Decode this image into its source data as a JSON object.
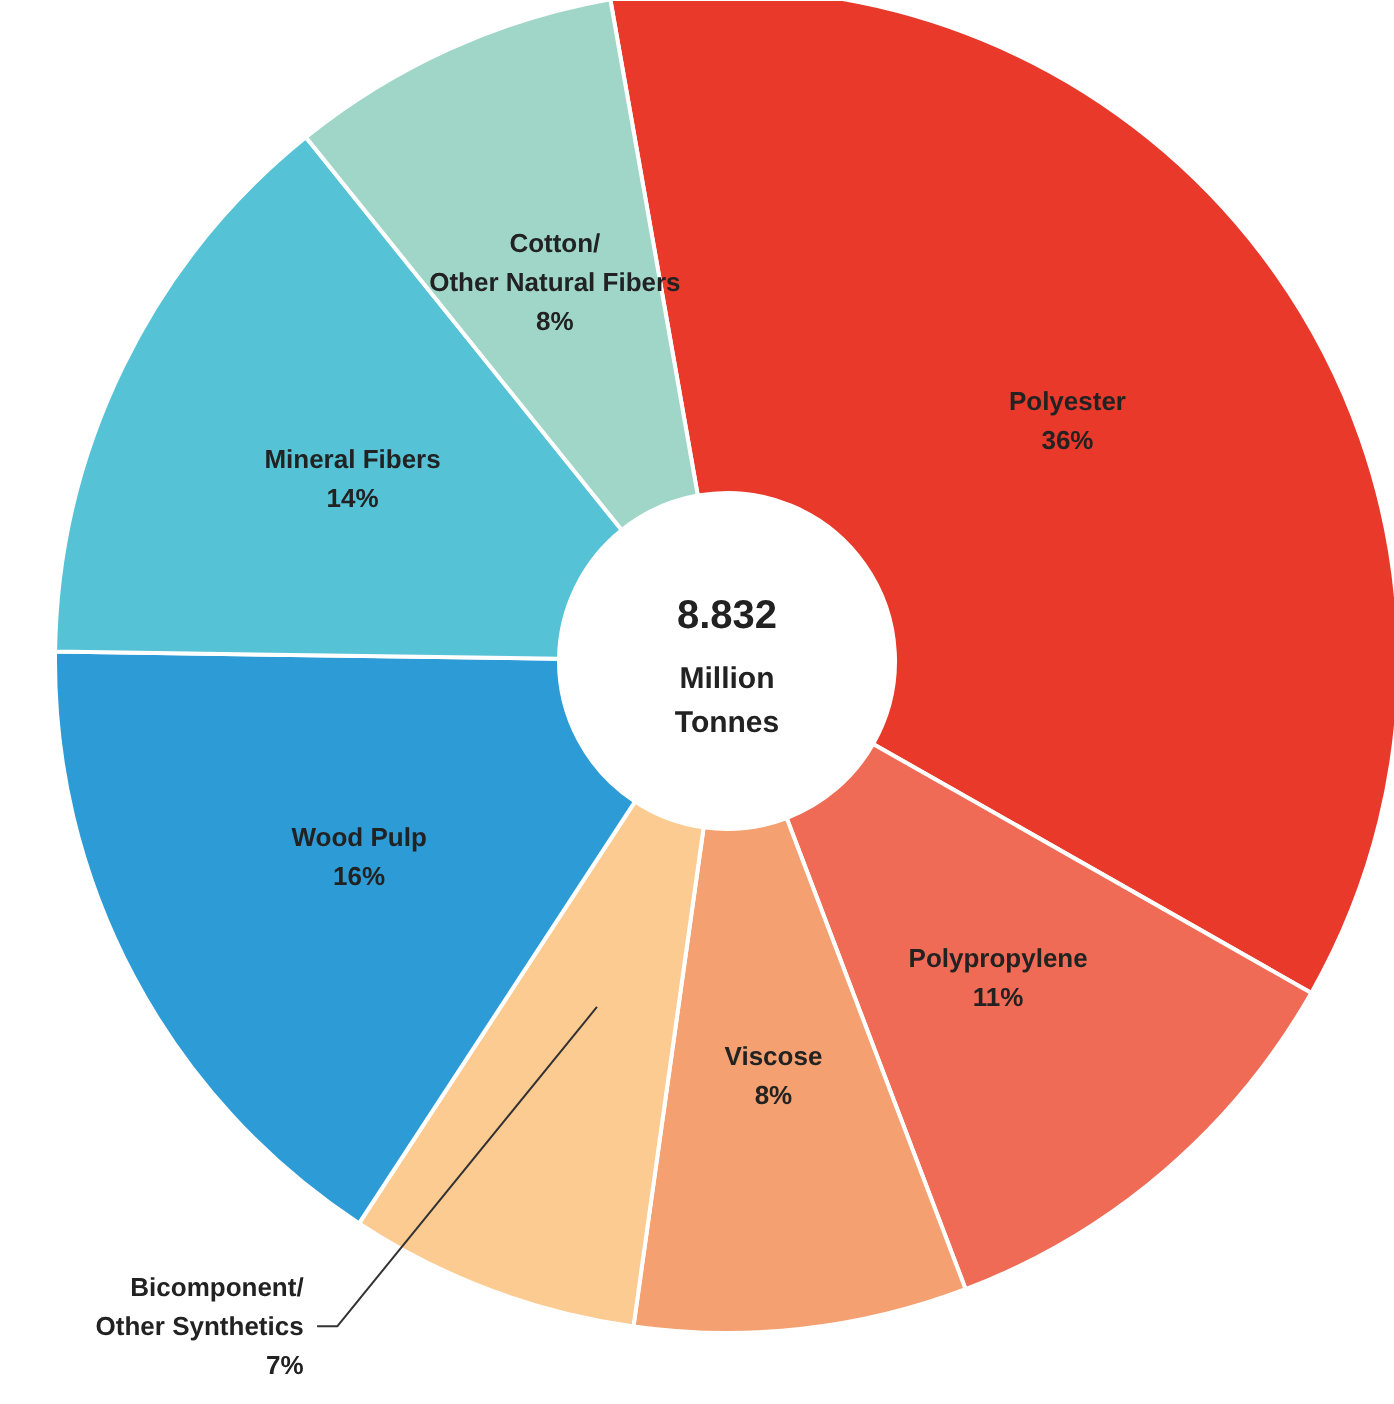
{
  "chart_data": {
    "type": "donut",
    "categories": [
      "Polyester",
      "Polypropylene",
      "Viscose",
      "Bicomponent/\nOther Synthetics",
      "Wood Pulp",
      "Mineral Fibers",
      "Cotton/\nOther Natural Fibers"
    ],
    "values": [
      36,
      11,
      8,
      7,
      16,
      14,
      8
    ],
    "value_labels": [
      "36%",
      "11%",
      "8%",
      "7%",
      "16%",
      "14%",
      "8%"
    ],
    "colors": [
      "#e8392a",
      "#ef6b55",
      "#f4a070",
      "#fccb92",
      "#2d9bd6",
      "#56c2d6",
      "#9fd6c8"
    ],
    "annotations": [
      "8.832\nMillion\nTonnes"
    ]
  }
}
